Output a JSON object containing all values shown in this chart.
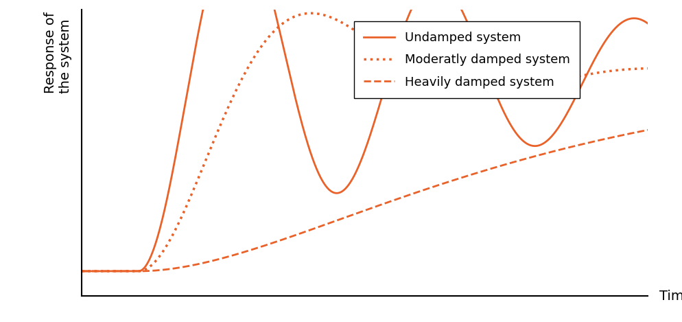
{
  "title": "",
  "ylabel": "Response of\nthe system",
  "xlabel": "Time",
  "line_color": "#E8622A",
  "background_color": "#ffffff",
  "legend_labels": [
    "Undamped system",
    "Moderatly damped system",
    "Heavily damped system"
  ],
  "legend_styles": [
    "solid",
    "dotted",
    "dashed"
  ],
  "ylabel_fontsize": 14,
  "xlabel_fontsize": 14,
  "legend_fontsize": 13
}
